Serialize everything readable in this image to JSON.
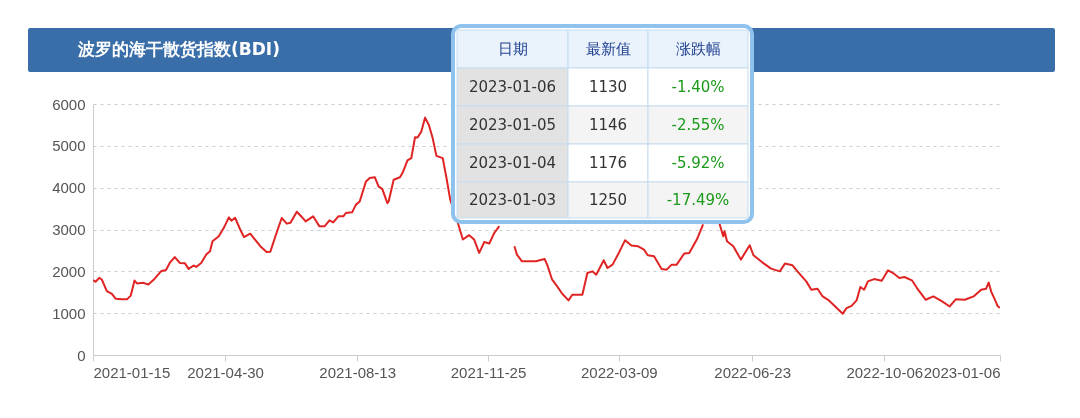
{
  "chart_data": {
    "type": "line",
    "title": "波罗的海干散货指数(BDI)",
    "annotations": [
      "日期",
      "最新值",
      "涨跌幅",
      "2023-01-06",
      "1130",
      "-1.40%",
      "2023-01-05",
      "1146",
      "-2.55%",
      "2023-01-04",
      "1176",
      "-5.92%",
      "2023-01-03",
      "1250",
      "-17.49%"
    ],
    "x": [
      "2021-01-15",
      "2021-01-17",
      "2021-01-20",
      "2021-01-22",
      "2021-01-26",
      "2021-01-30",
      "2021-02-02",
      "2021-02-07",
      "2021-02-11",
      "2021-02-14",
      "2021-02-17",
      "2021-02-19",
      "2021-02-24",
      "2021-02-28",
      "2021-03-04",
      "2021-03-10",
      "2021-03-14",
      "2021-03-17",
      "2021-03-21",
      "2021-03-25",
      "2021-03-29",
      "2021-04-01",
      "2021-04-05",
      "2021-04-07",
      "2021-04-11",
      "2021-04-15",
      "2021-04-18",
      "2021-04-20",
      "2021-04-25",
      "2021-04-29",
      "2021-05-03",
      "2021-05-05",
      "2021-05-08",
      "2021-05-12",
      "2021-05-15",
      "2021-05-20",
      "2021-05-28",
      "2021-06-02",
      "2021-06-05",
      "2021-06-09",
      "2021-06-14",
      "2021-06-18",
      "2021-06-21",
      "2021-06-26",
      "2021-06-30",
      "2021-07-03",
      "2021-07-09",
      "2021-07-14",
      "2021-07-18",
      "2021-07-22",
      "2021-07-25",
      "2021-07-29",
      "2021-08-02",
      "2021-08-04",
      "2021-08-09",
      "2021-08-12",
      "2021-08-15",
      "2021-08-20",
      "2021-08-23",
      "2021-08-27",
      "2021-08-30",
      "2021-09-02",
      "2021-09-06",
      "2021-09-07",
      "2021-09-11",
      "2021-09-16",
      "2021-09-18",
      "2021-09-22",
      "2021-09-25",
      "2021-09-28",
      "2021-09-30",
      "2021-10-03",
      "2021-10-06",
      "2021-10-09",
      "2021-10-12",
      "2021-10-15",
      "2021-10-20",
      "2021-10-23",
      "2021-10-26",
      "2021-11-01",
      "2021-11-05",
      "2021-11-10",
      "2021-11-14",
      "2021-11-18",
      "2021-11-22",
      "2021-11-26",
      "2021-11-30",
      "2021-12-04",
      "2021-12-08",
      "2021-12-10",
      "2021-12-13",
      "2021-12-16",
      "2021-12-18",
      "2021-12-22",
      "2022-01-02",
      "2022-01-09",
      "2022-01-11",
      "2022-01-15",
      "2022-01-19",
      "2022-01-23",
      "2022-01-28",
      "2022-01-31",
      "2022-02-08",
      "2022-02-12",
      "2022-02-16",
      "2022-02-19",
      "2022-02-25",
      "2022-02-28",
      "2022-03-04",
      "2022-03-09",
      "2022-03-14",
      "2022-03-19",
      "2022-03-24",
      "2022-03-29",
      "2022-04-01",
      "2022-04-06",
      "2022-04-12",
      "2022-04-16",
      "2022-04-20",
      "2022-04-24",
      "2022-04-30",
      "2022-05-04",
      "2022-05-10",
      "2022-05-15",
      "2022-05-20",
      "2022-05-24",
      "2022-05-27",
      "2022-05-31",
      "2022-06-01",
      "2022-06-03",
      "2022-06-08",
      "2022-06-14",
      "2022-06-21",
      "2022-06-24",
      "2022-07-01",
      "2022-07-08",
      "2022-07-15",
      "2022-07-19",
      "2022-07-25",
      "2022-07-29",
      "2022-08-05",
      "2022-08-09",
      "2022-08-14",
      "2022-08-18",
      "2022-08-23",
      "2022-08-28",
      "2022-09-03",
      "2022-09-06",
      "2022-09-10",
      "2022-09-14",
      "2022-09-17",
      "2022-09-20",
      "2022-09-23",
      "2022-09-28",
      "2022-10-04",
      "2022-10-09",
      "2022-10-13",
      "2022-10-18",
      "2022-10-22",
      "2022-10-28",
      "2022-11-01",
      "2022-11-08",
      "2022-11-14",
      "2022-11-21",
      "2022-11-27",
      "2022-12-02",
      "2022-12-09",
      "2022-12-16",
      "2022-12-22",
      "2022-12-26",
      "2022-12-28",
      "2022-12-30",
      "2023-01-03",
      "2023-01-04",
      "2023-01-05",
      "2023-01-06"
    ],
    "series": [
      {
        "color": "#e02424",
        "values": [
          1790,
          1750,
          1845,
          1805,
          1525,
          1460,
          1345,
          1330,
          1330,
          1420,
          1780,
          1710,
          1725,
          1685,
          1790,
          2000,
          2030,
          2200,
          2340,
          2200,
          2195,
          2060,
          2140,
          2105,
          2200,
          2400,
          2480,
          2720,
          2840,
          3040,
          3290,
          3210,
          3280,
          3000,
          2820,
          2900,
          2600,
          2465,
          2470,
          2840,
          3275,
          3140,
          3160,
          3425,
          3300,
          3195,
          3315,
          3075,
          3075,
          3220,
          3170,
          3315,
          3315,
          3395,
          3410,
          3595,
          3670,
          4150,
          4230,
          4250,
          4030,
          3965,
          3630,
          3670,
          4190,
          4250,
          4350,
          4650,
          4705,
          5205,
          5200,
          5340,
          5675,
          5500,
          5185,
          4760,
          4705,
          4230,
          3710,
          3160,
          2760,
          2865,
          2760,
          2440,
          2700,
          2665,
          2920,
          3080,
          null,
          null,
          null,
          2600,
          2400,
          2240,
          2240,
          2295,
          2160,
          1800,
          1640,
          1465,
          1305,
          1440,
          1440,
          1960,
          2000,
          1920,
          2265,
          2080,
          2160,
          2440,
          2745,
          2615,
          2600,
          2520,
          2385,
          2360,
          2055,
          2040,
          2160,
          2160,
          2425,
          2440,
          2760,
          3120,
          null,
          null,
          3240,
          2840,
          2960,
          2720,
          2600,
          2280,
          2625,
          2385,
          2215,
          2065,
          2000,
          2185,
          2145,
          2000,
          1760,
          1560,
          1585,
          1400,
          1305,
          1160,
          985,
          1120,
          1175,
          1305,
          1625,
          1560,
          1760,
          1815,
          1775,
          2025,
          1960,
          1840,
          1865,
          1785,
          1600,
          1320,
          1400,
          1280,
          1160,
          1335,
          1320,
          1400,
          1560,
          1585,
          1735,
          1515,
          1250,
          1176,
          1146,
          1130
        ]
      }
    ],
    "xlim": [
      "2021-01-15",
      "2023-01-06"
    ],
    "xticks": [
      "2021-01-15",
      "2021-04-30",
      "2021-08-13",
      "2021-11-25",
      "2022-03-09",
      "2022-06-23",
      "2022-10-06",
      "2023-01-06"
    ],
    "ylim": [
      0,
      6000
    ],
    "yticks": [
      0,
      1000,
      2000,
      3000,
      4000,
      5000,
      6000
    ],
    "grid": "y"
  }
}
